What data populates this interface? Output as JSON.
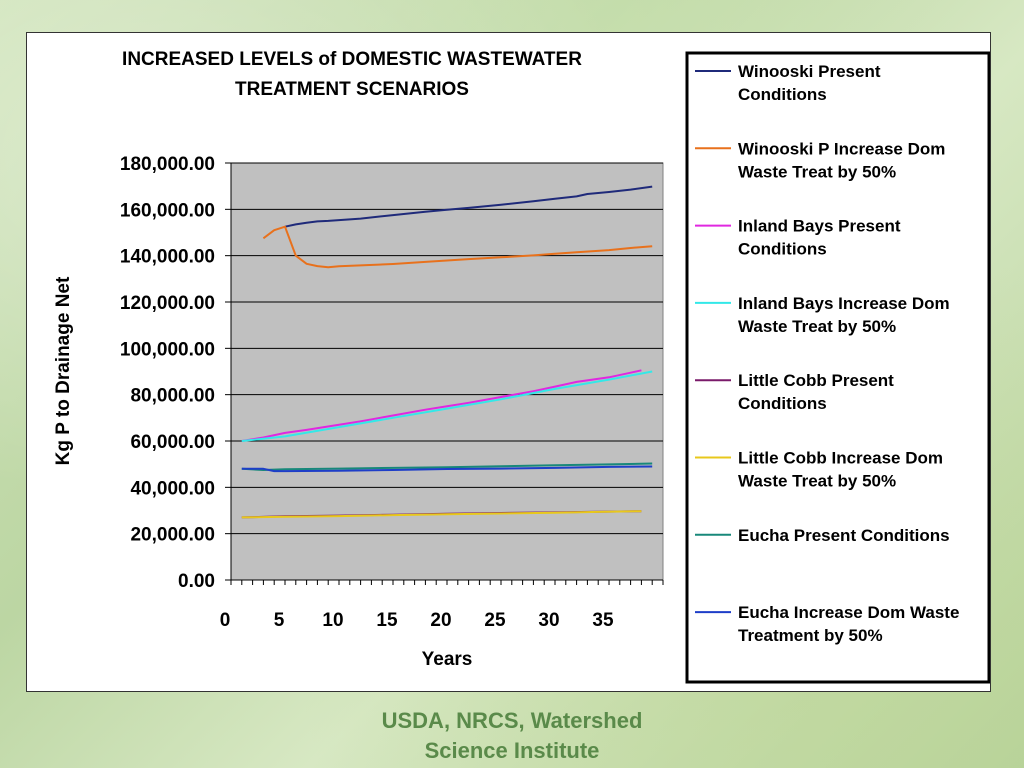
{
  "footer": {
    "line1": "USDA, NRCS, Watershed",
    "line2": "Science Institute"
  },
  "chart_data": {
    "type": "line",
    "title": [
      "INCREASED LEVELS of DOMESTIC WASTEWATER",
      "TREATMENT SCENARIOS"
    ],
    "xlabel": "Years",
    "ylabel": "Kg P to Drainage Net",
    "xlim": [
      0,
      40
    ],
    "ylim": [
      0,
      180000
    ],
    "xticks": [
      0,
      5,
      10,
      15,
      20,
      25,
      30,
      35
    ],
    "xtick_labels": [
      "0",
      "5",
      "10",
      "15",
      "20",
      "25",
      "30",
      "35"
    ],
    "yticks": [
      0,
      20000,
      40000,
      60000,
      80000,
      100000,
      120000,
      140000,
      160000,
      180000
    ],
    "ytick_labels": [
      "0.00",
      "20,000.00",
      "40,000.00",
      "60,000.00",
      "80,000.00",
      "100,000.00",
      "120,000.00",
      "140,000.00",
      "160,000.00",
      "180,000.00"
    ],
    "grid": "horizontal",
    "plot_background": "#c0c0c0",
    "legend_position": "right",
    "series": [
      {
        "name": "Winooski Present Conditions",
        "color": "#1f2a7a",
        "x": [
          5,
          6,
          7,
          8,
          9,
          12,
          15,
          18,
          20,
          22,
          25,
          28,
          30,
          32,
          33,
          35,
          37,
          39
        ],
        "values": [
          152500,
          153500,
          154200,
          154800,
          155000,
          156000,
          157500,
          159000,
          159800,
          160600,
          162000,
          163500,
          164600,
          165600,
          166600,
          167500,
          168500,
          169800
        ]
      },
      {
        "name": "Winooski P Increase Dom Waste Treat by 50%",
        "color": "#e8711c",
        "x": [
          3,
          4,
          5,
          6,
          7,
          8,
          9,
          10,
          12,
          15,
          18,
          20,
          22,
          25,
          28,
          30,
          32,
          35,
          37,
          39
        ],
        "values": [
          147500,
          151000,
          152500,
          140000,
          136500,
          135500,
          135000,
          135400,
          135800,
          136400,
          137300,
          137900,
          138500,
          139300,
          140100,
          140800,
          141500,
          142400,
          143300,
          144100
        ]
      },
      {
        "name": "Inland Bays Present Conditions",
        "color": "#e028e0",
        "x": [
          1,
          3,
          5,
          7,
          10,
          12,
          15,
          18,
          20,
          22,
          25,
          28,
          30,
          32,
          35,
          37,
          38
        ],
        "values": [
          60000,
          61500,
          63500,
          64800,
          67000,
          68500,
          71000,
          73500,
          75000,
          76500,
          79000,
          81500,
          83500,
          85500,
          87500,
          89500,
          90500
        ]
      },
      {
        "name": "Inland Bays Increase Dom Waste Treat by 50%",
        "color": "#33e8e8",
        "x": [
          1,
          5,
          10,
          15,
          20,
          25,
          30,
          35,
          39
        ],
        "values": [
          60000,
          62000,
          66000,
          70000,
          74000,
          78000,
          82500,
          86500,
          90000
        ]
      },
      {
        "name": "Little Cobb Present Conditions",
        "color": "#7a1a6a",
        "x": [
          1,
          5,
          10,
          15,
          20,
          25,
          30,
          34,
          38
        ],
        "values": [
          27000,
          27500,
          27800,
          28200,
          28600,
          28900,
          29200,
          29500,
          29700
        ]
      },
      {
        "name": "Little Cobb Increase Dom Waste Treat by  50%",
        "color": "#e8c81c",
        "x": [
          1,
          5,
          10,
          15,
          20,
          25,
          30,
          34,
          38
        ],
        "values": [
          27000,
          27300,
          27600,
          28000,
          28400,
          28700,
          29000,
          29400,
          29700
        ]
      },
      {
        "name": "Eucha Present Conditions",
        "color": "#18887a",
        "x": [
          1,
          3,
          5,
          10,
          15,
          20,
          25,
          30,
          35,
          39
        ],
        "values": [
          48000,
          47500,
          47800,
          48100,
          48400,
          48700,
          49100,
          49500,
          49900,
          50300
        ]
      },
      {
        "name": "Eucha Increase Dom Waste Treatment by 50%",
        "color": "#1e3ec8",
        "x": [
          1,
          3,
          4,
          5,
          10,
          15,
          20,
          25,
          30,
          35,
          39
        ],
        "values": [
          48000,
          48000,
          47000,
          47000,
          47200,
          47500,
          47900,
          48100,
          48400,
          48800,
          49000
        ]
      }
    ]
  }
}
